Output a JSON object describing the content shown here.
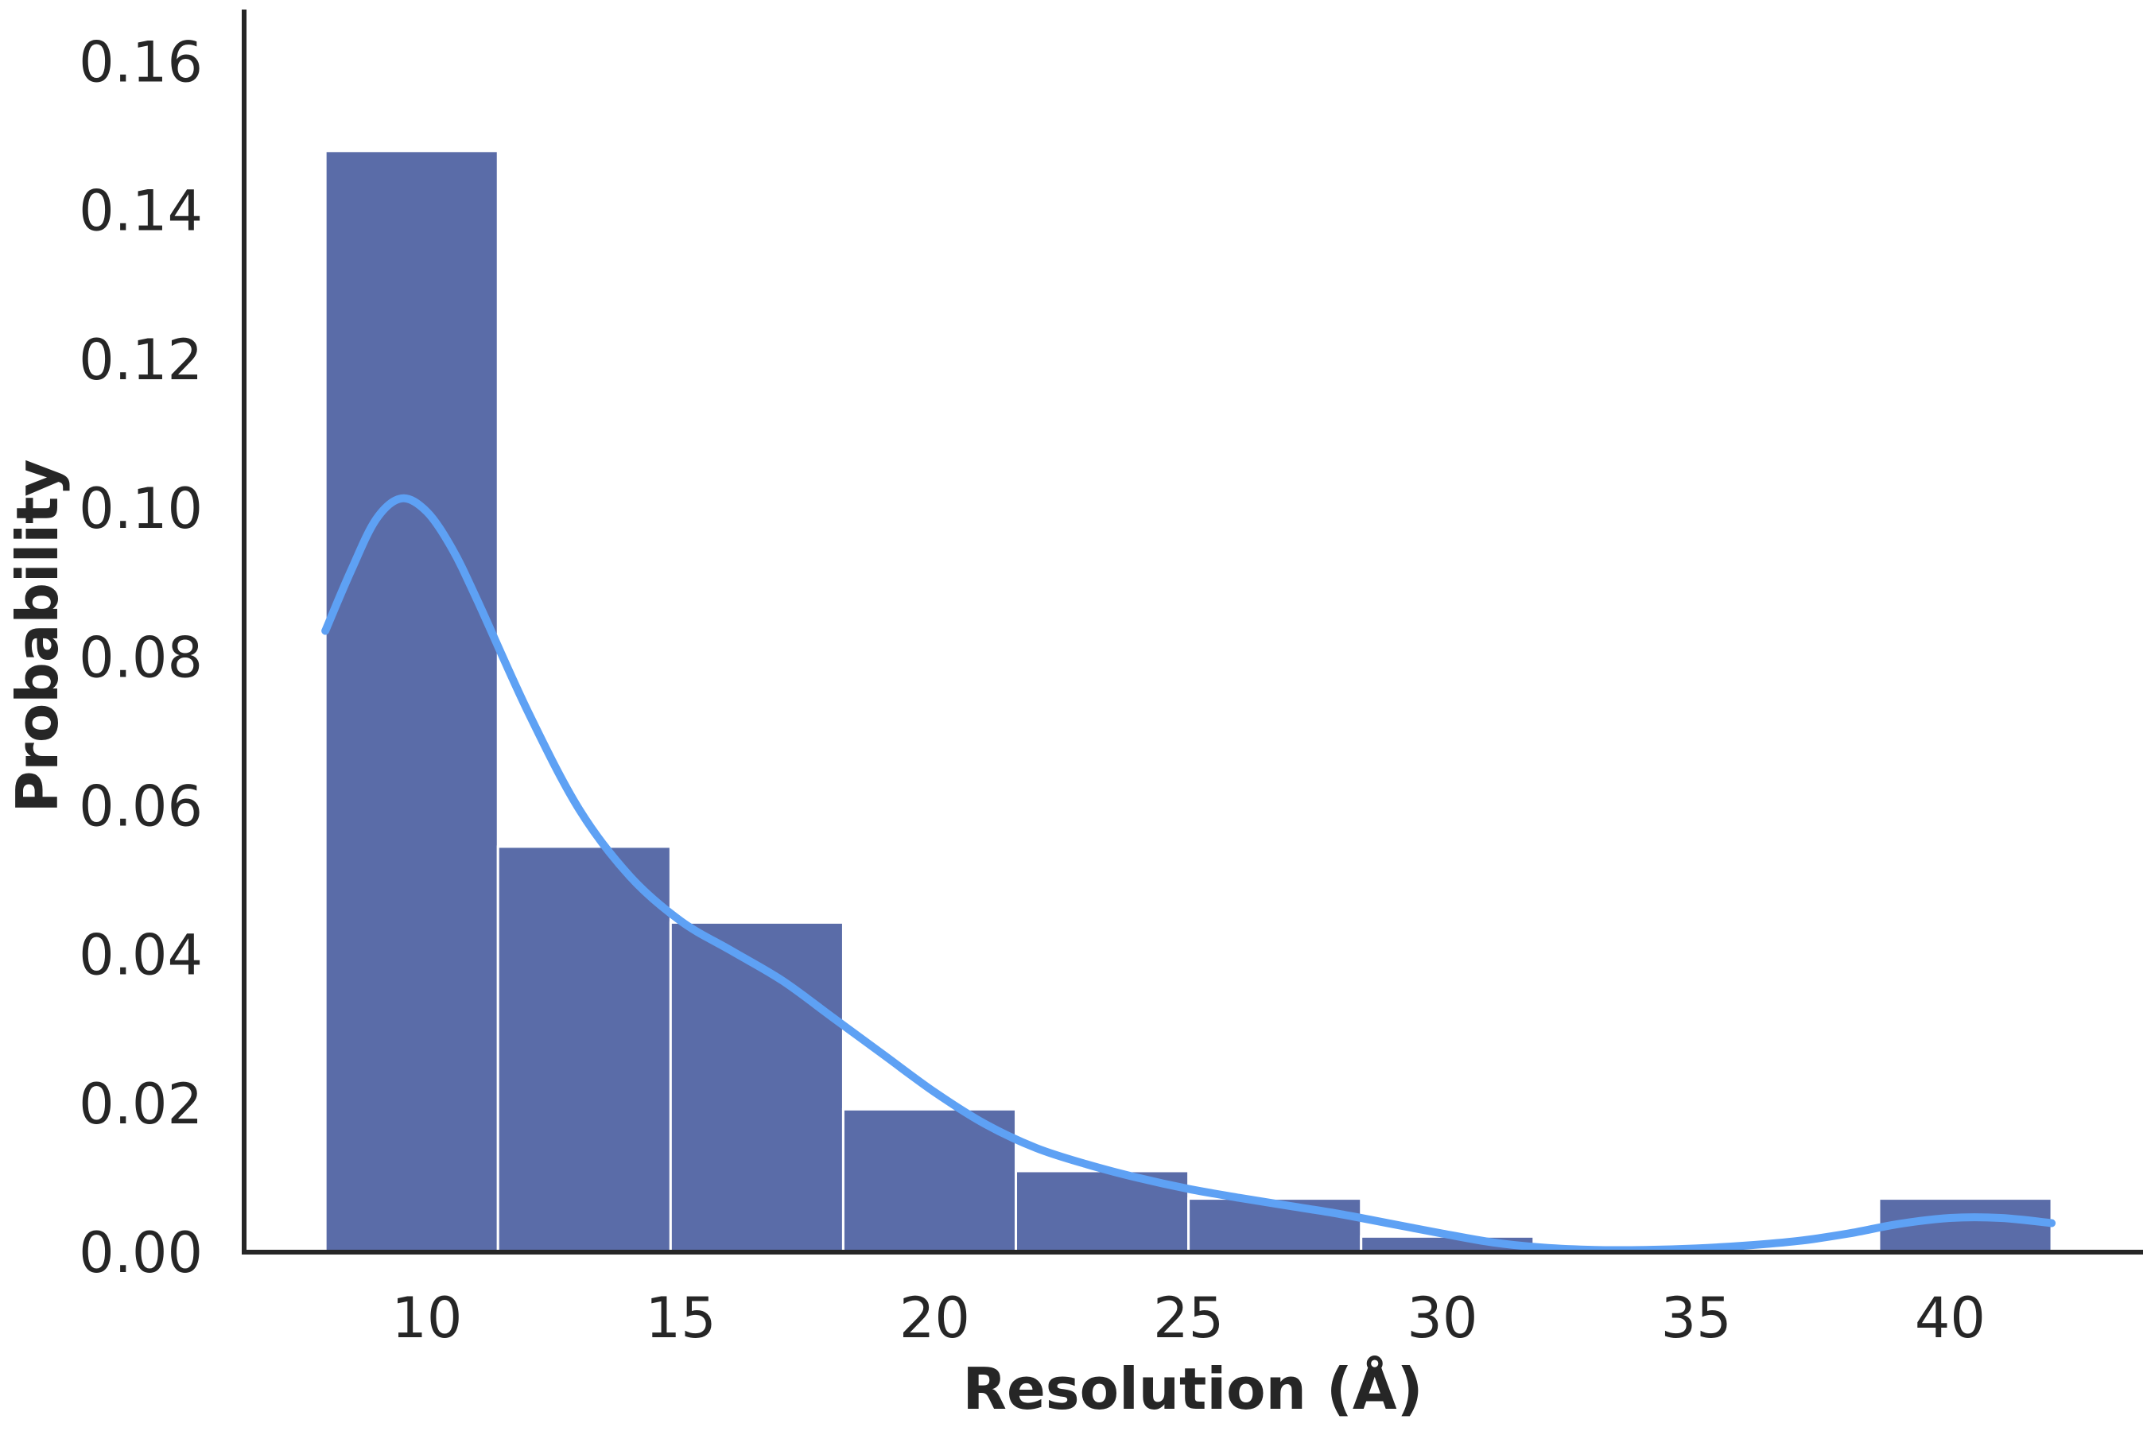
{
  "chart_data": {
    "type": "bar",
    "xlabel": "Resolution (Å)",
    "ylabel": "Probability",
    "xlim": [
      6.4,
      43.8
    ],
    "ylim": [
      0,
      0.167
    ],
    "xticks": [
      10,
      15,
      20,
      25,
      30,
      35,
      40
    ],
    "xtick_labels": [
      "10",
      "15",
      "20",
      "25",
      "30",
      "35",
      "40"
    ],
    "yticks": [
      0.0,
      0.02,
      0.04,
      0.06,
      0.08,
      0.1,
      0.12,
      0.14,
      0.16
    ],
    "ytick_labels": [
      "0.00",
      "0.02",
      "0.04",
      "0.06",
      "0.08",
      "0.10",
      "0.12",
      "0.14",
      "0.16"
    ],
    "bins": [
      {
        "x0": 8.0,
        "x1": 11.4,
        "value": 0.148
      },
      {
        "x0": 11.4,
        "x1": 14.8,
        "value": 0.0545
      },
      {
        "x0": 14.8,
        "x1": 18.2,
        "value": 0.0443
      },
      {
        "x0": 18.2,
        "x1": 21.6,
        "value": 0.0192
      },
      {
        "x0": 21.6,
        "x1": 25.0,
        "value": 0.0109
      },
      {
        "x0": 25.0,
        "x1": 28.4,
        "value": 0.0072
      },
      {
        "x0": 28.4,
        "x1": 31.8,
        "value": 0.0021
      },
      {
        "x0": 31.8,
        "x1": 35.2,
        "value": 0.0
      },
      {
        "x0": 35.2,
        "x1": 38.6,
        "value": 0.0
      },
      {
        "x0": 38.6,
        "x1": 42.0,
        "value": 0.0072
      }
    ],
    "kde": {
      "x": [
        8.0,
        8.5,
        9.0,
        9.5,
        10.0,
        10.5,
        11.0,
        12.0,
        13.0,
        14.0,
        15.0,
        16.0,
        17.0,
        18.0,
        19.0,
        20.0,
        21.0,
        22.0,
        23.0,
        24.0,
        25.0,
        26.0,
        27.0,
        28.0,
        29.0,
        30.0,
        31.0,
        32.0,
        33.0,
        34.0,
        35.0,
        36.0,
        37.0,
        38.0,
        39.0,
        40.0,
        41.0,
        42.0
      ],
      "y": [
        0.0835,
        0.0915,
        0.0985,
        0.1013,
        0.0995,
        0.0945,
        0.0875,
        0.0725,
        0.0595,
        0.0505,
        0.0445,
        0.0405,
        0.0365,
        0.0315,
        0.0265,
        0.0215,
        0.0172,
        0.014,
        0.0118,
        0.01,
        0.0085,
        0.0073,
        0.0062,
        0.0051,
        0.0038,
        0.0025,
        0.0013,
        0.0006,
        0.0003,
        0.0003,
        0.0005,
        0.0009,
        0.0015,
        0.0025,
        0.0038,
        0.0046,
        0.0046,
        0.0039
      ]
    },
    "bar_color": "#5a6ca8",
    "kde_color": "#5ea1f4",
    "axis_color": "#262626",
    "grid": false
  }
}
